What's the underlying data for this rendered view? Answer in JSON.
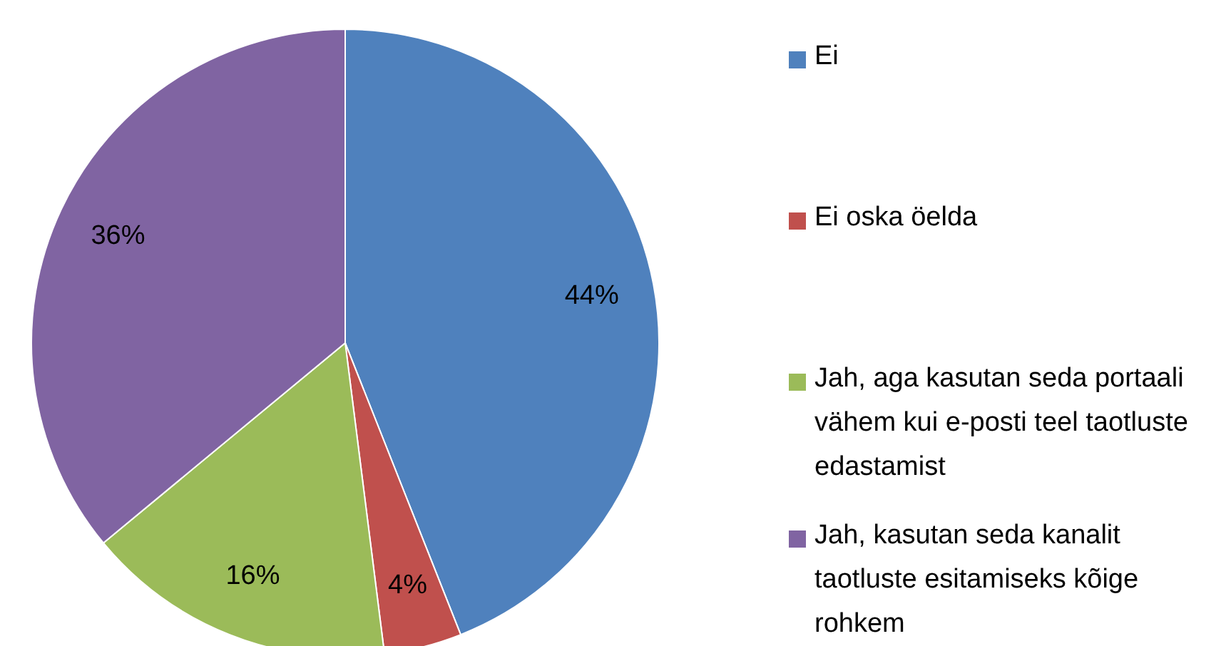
{
  "chart_data": {
    "type": "pie",
    "categories": [
      "Ei",
      "Ei oska öelda",
      "Jah, aga kasutan seda portaali vähem kui e-posti teel taotluste edastamist",
      "Jah, kasutan seda kanalit taotluste esitamiseks kõige rohkem"
    ],
    "values": [
      44,
      4,
      16,
      36
    ],
    "colors": [
      "#4f81bd",
      "#c0504d",
      "#9bbb59",
      "#8064a2"
    ],
    "value_labels": [
      "44%",
      "4%",
      "16%",
      "36%"
    ],
    "legend": "right"
  }
}
